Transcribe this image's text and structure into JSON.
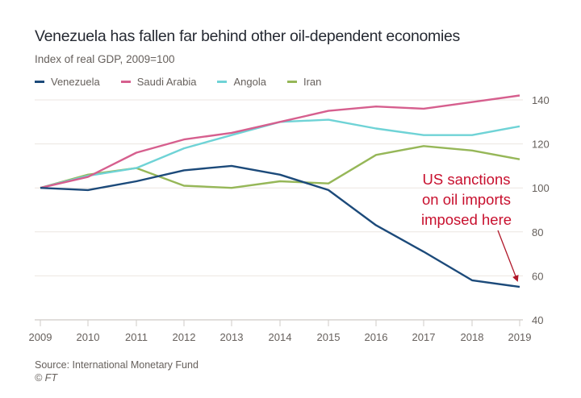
{
  "header": {
    "title": "Venezuela has fallen far behind other oil-dependent economies",
    "subtitle": "Index of real GDP, 2009=100"
  },
  "footer": {
    "source": "Source: International Monetary Fund",
    "copyright": "© FT"
  },
  "chart_data": {
    "type": "line",
    "title": "Venezuela has fallen far behind other oil-dependent economies",
    "subtitle": "Index of real GDP, 2009=100",
    "xlabel": "",
    "ylabel": "Index of real GDP, 2009=100",
    "x": [
      2009,
      2010,
      2011,
      2012,
      2013,
      2014,
      2015,
      2016,
      2017,
      2018,
      2019
    ],
    "x_tick_labels": [
      "2009",
      "2010",
      "2011",
      "2012",
      "2013",
      "2014",
      "2015",
      "2016",
      "2017",
      "2018",
      "2019"
    ],
    "ylim": [
      40,
      145
    ],
    "y_ticks": [
      40,
      60,
      80,
      100,
      120,
      140
    ],
    "y_tick_labels": [
      "40",
      "60",
      "80",
      "100",
      "120",
      "140"
    ],
    "y_axis_side": "right",
    "grid": true,
    "legend_placement": "top-left",
    "series": [
      {
        "name": "Venezuela",
        "color": "#1c4a7a",
        "values": [
          100,
          99,
          103,
          108,
          110,
          106,
          99,
          83,
          71,
          58,
          55
        ]
      },
      {
        "name": "Saudi Arabia",
        "color": "#d65f8e",
        "values": [
          100,
          105,
          116,
          122,
          125,
          130,
          135,
          137,
          136,
          139,
          142
        ]
      },
      {
        "name": "Angola",
        "color": "#6fd3d6",
        "values": [
          100,
          105.5,
          109,
          118,
          124,
          130,
          131,
          127,
          124,
          124,
          128
        ]
      },
      {
        "name": "Iran",
        "color": "#96b758",
        "values": [
          100,
          106,
          109,
          101,
          100,
          103,
          102,
          115,
          119,
          117,
          113
        ]
      }
    ],
    "annotations": [
      {
        "text_lines": [
          "US sanctions",
          "on oil imports",
          "imposed here"
        ],
        "color": "#c8102e",
        "points_to": {
          "x": 2019,
          "y": 55
        }
      }
    ]
  }
}
